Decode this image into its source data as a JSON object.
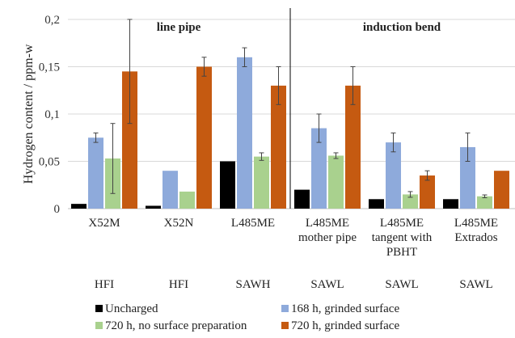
{
  "chart_data": {
    "type": "bar",
    "title": "",
    "xlabel": "",
    "ylabel": "Hydrogen content / ppm-w",
    "ylim": [
      0,
      0.2
    ],
    "yticks": [
      "0",
      "0,05",
      "0,1",
      "0,15",
      "0,2"
    ],
    "grid": true,
    "legend_position": "bottom",
    "group_labels": [
      "line pipe",
      "induction bend"
    ],
    "categories": [
      [
        "X52M"
      ],
      [
        "X52N"
      ],
      [
        "L485ME"
      ],
      [
        "L485ME",
        "mother pipe"
      ],
      [
        "L485ME",
        "tangent with",
        "PBHT"
      ],
      [
        "L485ME",
        "Extrados"
      ]
    ],
    "pipe_types": [
      "HFI",
      "HFI",
      "SAWH",
      "SAWL",
      "SAWL",
      "SAWL"
    ],
    "series": [
      {
        "name": "Uncharged",
        "color": "#000000",
        "values": [
          0.005,
          0.003,
          0.05,
          0.02,
          0.01,
          0.01
        ],
        "errors": [
          0,
          0,
          0,
          0,
          0,
          0
        ]
      },
      {
        "name": "168 h, grinded surface",
        "color": "#8eaadb",
        "values": [
          0.075,
          0.04,
          0.16,
          0.085,
          0.07,
          0.065
        ],
        "errors": [
          0.005,
          0,
          0.01,
          0.015,
          0.01,
          0.015
        ]
      },
      {
        "name": "720 h, no surface preparation",
        "color": "#a9d18e",
        "values": [
          0.053,
          0.018,
          0.055,
          0.056,
          0.015,
          0.013
        ],
        "errors": [
          0.037,
          0,
          0.004,
          0.003,
          0.003,
          0.0015
        ]
      },
      {
        "name": "720 h, grinded surface",
        "color": "#c55a11",
        "values": [
          0.145,
          0.15,
          0.13,
          0.13,
          0.035,
          0.04
        ],
        "errors": [
          0.055,
          0.01,
          0.02,
          0.02,
          0.005,
          0
        ]
      }
    ]
  }
}
